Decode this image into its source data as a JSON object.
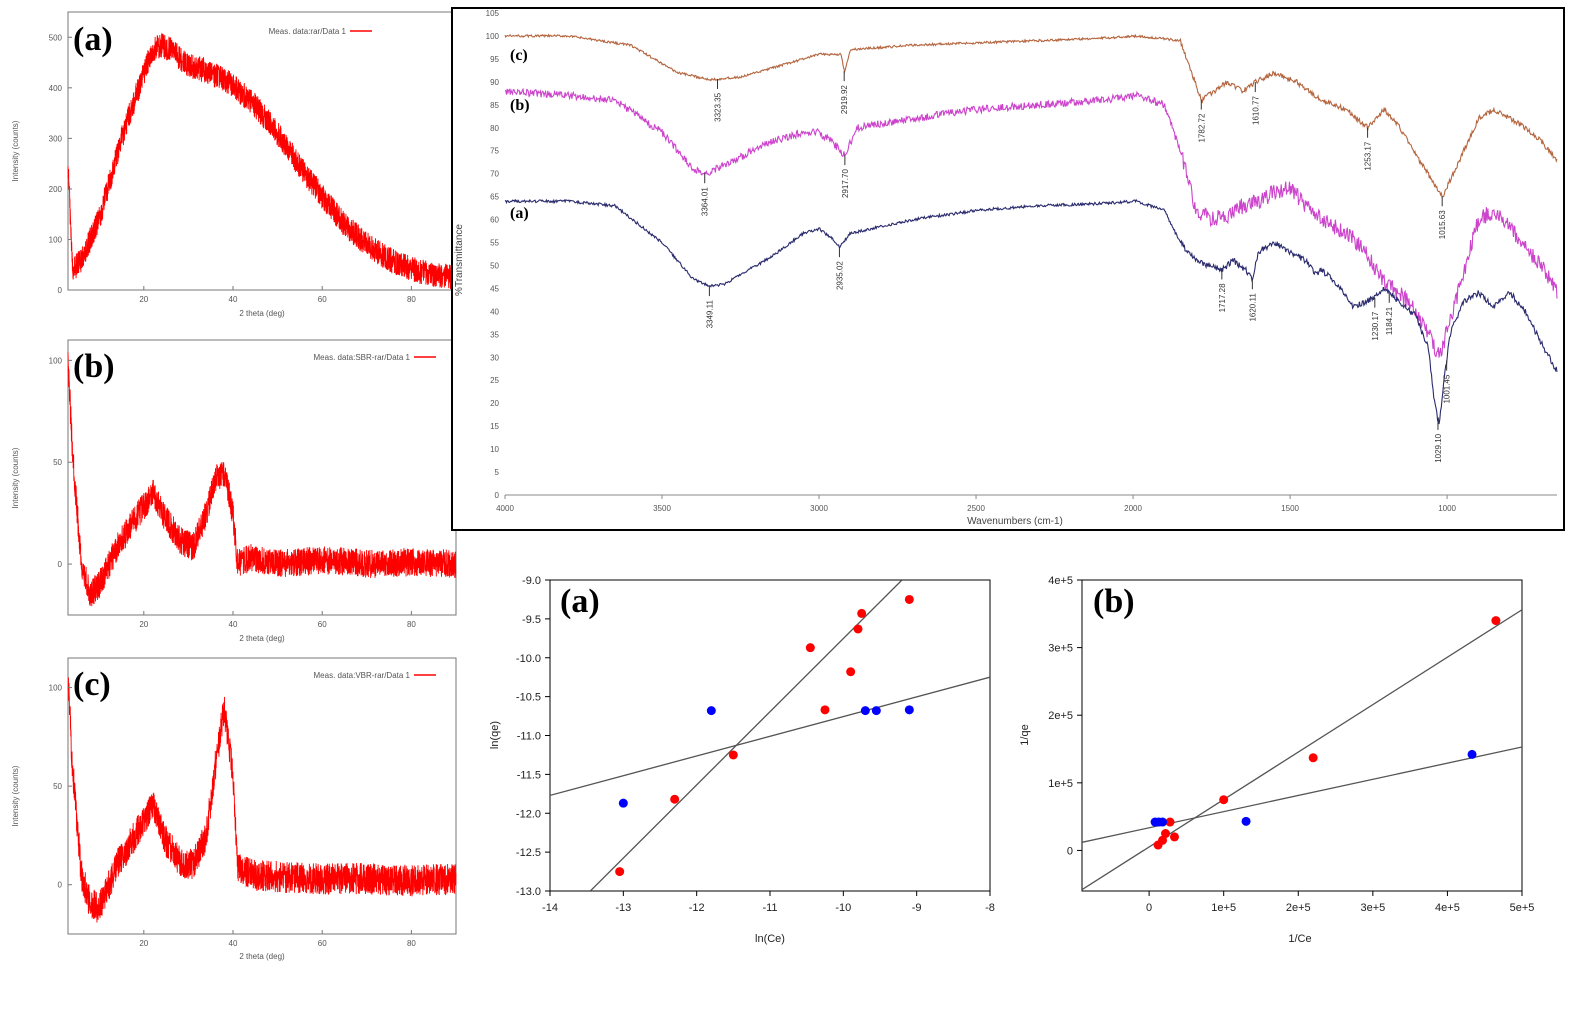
{
  "chart_data": [
    {
      "id": "xrd_a",
      "type": "line",
      "panel_label": "(a)",
      "legend": "Meas. data:rar/Data 1",
      "xlabel": "2 theta (deg)",
      "ylabel": "Intensity (counts)",
      "xlim": [
        3,
        90
      ],
      "ylim": [
        0,
        550
      ],
      "x_ticks": [
        20,
        40,
        60,
        80
      ],
      "y_ticks": [
        0,
        100,
        200,
        300,
        400,
        500
      ],
      "color": "#ff0000",
      "noise": 25,
      "x": [
        3,
        4,
        6,
        10,
        15,
        20,
        22,
        24,
        26,
        30,
        35,
        40,
        45,
        50,
        55,
        60,
        65,
        70,
        75,
        80,
        85,
        90
      ],
      "y": [
        250,
        40,
        60,
        140,
        300,
        430,
        475,
        485,
        475,
        445,
        430,
        405,
        365,
        310,
        245,
        185,
        130,
        90,
        60,
        42,
        30,
        25
      ]
    },
    {
      "id": "xrd_b",
      "type": "line",
      "panel_label": "(b)",
      "legend": "Meas. data:SBR-rar/Data 1",
      "xlabel": "2 theta (deg)",
      "ylabel": "Intensity (counts)",
      "xlim": [
        3,
        90
      ],
      "ylim": [
        -25,
        110
      ],
      "x_ticks": [
        20,
        40,
        60,
        80
      ],
      "y_ticks": [
        0,
        50,
        100
      ],
      "color": "#ff0000",
      "noise": 7,
      "x": [
        3,
        4,
        6,
        8,
        10,
        14,
        18,
        22,
        25,
        28,
        31,
        34,
        36,
        38,
        40,
        41,
        44,
        50,
        60,
        70,
        80,
        90
      ],
      "y": [
        100,
        55,
        0,
        -15,
        -10,
        8,
        22,
        35,
        22,
        12,
        8,
        25,
        42,
        45,
        25,
        0,
        3,
        0,
        2,
        0,
        1,
        0
      ]
    },
    {
      "id": "xrd_c",
      "type": "line",
      "panel_label": "(c)",
      "legend": "Meas. data:VBR-rar/Data 1",
      "xlabel": "2 theta (deg)",
      "ylabel": "Intensity (counts)",
      "xlim": [
        3,
        90
      ],
      "ylim": [
        -25,
        115
      ],
      "x_ticks": [
        20,
        40,
        60,
        80
      ],
      "y_ticks": [
        0,
        50,
        100
      ],
      "color": "#ff0000",
      "noise": 8,
      "x": [
        3,
        4,
        6,
        8,
        10,
        14,
        18,
        22,
        25,
        28,
        31,
        34,
        36,
        38,
        40,
        41,
        44,
        50,
        60,
        70,
        80,
        90
      ],
      "y": [
        105,
        60,
        5,
        -10,
        -12,
        10,
        25,
        40,
        22,
        12,
        10,
        25,
        60,
        90,
        55,
        10,
        5,
        4,
        3,
        3,
        2,
        3
      ]
    },
    {
      "id": "ftir",
      "type": "line",
      "xlabel": "Wavenumbers (cm-1)",
      "ylabel": "%Transmittance",
      "xlim": [
        4000,
        650
      ],
      "ylim": [
        0,
        105
      ],
      "x_ticks": [
        4000,
        3500,
        3000,
        2500,
        2000,
        1500,
        1000
      ],
      "x_tick_labels": [
        "4000",
        "3500",
        "3000",
        "2500",
        "2000",
        "1500",
        "1000"
      ],
      "y_ticks": [
        0,
        5,
        10,
        15,
        20,
        25,
        30,
        35,
        40,
        45,
        50,
        55,
        60,
        65,
        70,
        75,
        80,
        85,
        90,
        95,
        100,
        105
      ],
      "series": [
        {
          "label": "(c)",
          "color": "#b5653f",
          "noise": 0.25,
          "x": [
            4000,
            3800,
            3600,
            3450,
            3350,
            3250,
            3100,
            3000,
            2930,
            2919,
            2900,
            2700,
            2300,
            2100,
            1990,
            1850,
            1782,
            1700,
            1650,
            1610,
            1550,
            1480,
            1400,
            1320,
            1253,
            1200,
            1150,
            1080,
            1015,
            980,
            900,
            850,
            800,
            750,
            700,
            650
          ],
          "y": [
            100,
            100,
            98,
            92,
            90.5,
            91,
            94,
            96,
            96,
            92,
            97,
            98,
            99,
            99.5,
            100,
            99,
            86,
            90,
            88,
            90,
            92,
            90,
            86,
            84,
            80,
            84,
            80,
            72,
            65,
            70,
            82,
            84,
            82,
            80,
            77,
            73
          ]
        },
        {
          "label": "(b)",
          "color": "#cc44cc",
          "noise": 0.8,
          "x": [
            4000,
            3800,
            3650,
            3500,
            3400,
            3360,
            3300,
            3150,
            3050,
            3000,
            2960,
            2917,
            2880,
            2700,
            2500,
            2300,
            2100,
            1990,
            1900,
            1850,
            1800,
            1750,
            1700,
            1650,
            1600,
            1550,
            1500,
            1450,
            1400,
            1300,
            1250,
            1200,
            1150,
            1100,
            1050,
            1025,
            990,
            900,
            850,
            800,
            750,
            700,
            650
          ],
          "y": [
            88,
            87,
            86,
            79,
            71,
            70,
            72,
            77,
            79,
            79,
            77,
            74,
            80,
            82,
            84,
            85,
            86,
            87,
            85,
            75,
            62,
            60,
            61,
            63,
            64,
            66,
            67,
            63,
            60,
            56,
            52,
            46,
            44,
            40,
            34,
            30,
            38,
            60,
            62,
            58,
            54,
            50,
            44
          ]
        },
        {
          "label": "(a)",
          "color": "#2a2a6e",
          "noise": 0.3,
          "x": [
            4000,
            3800,
            3650,
            3500,
            3400,
            3350,
            3300,
            3150,
            3050,
            3000,
            2960,
            2935,
            2900,
            2700,
            2500,
            2300,
            2100,
            1990,
            1900,
            1850,
            1800,
            1720,
            1680,
            1640,
            1620,
            1600,
            1550,
            1500,
            1450,
            1420,
            1400,
            1350,
            1300,
            1260,
            1230,
            1200,
            1150,
            1100,
            1060,
            1040,
            1025,
            1010,
            990,
            950,
            900,
            850,
            800,
            750,
            700,
            650
          ],
          "y": [
            64,
            64,
            63,
            55,
            47,
            45.5,
            46,
            52,
            57,
            58,
            56,
            54,
            57,
            60,
            62,
            63,
            63.5,
            64,
            62,
            55,
            51,
            49,
            51,
            49,
            47,
            53,
            55,
            53,
            51,
            48,
            49,
            46,
            41,
            42,
            43,
            45,
            42,
            39,
            32,
            20,
            15,
            25,
            35,
            42,
            44,
            41,
            44,
            40,
            33,
            27
          ]
        }
      ],
      "annotations": [
        {
          "series": "(c)",
          "x": 3323.35,
          "text": "3323.35"
        },
        {
          "series": "(c)",
          "x": 2919.92,
          "text": "2919.92"
        },
        {
          "series": "(c)",
          "x": 1782.72,
          "text": "1782.72"
        },
        {
          "series": "(c)",
          "x": 1610.77,
          "text": "1610.77"
        },
        {
          "series": "(c)",
          "x": 1253.17,
          "text": "1253.17"
        },
        {
          "series": "(c)",
          "x": 1015.63,
          "text": "1015.63"
        },
        {
          "series": "(b)",
          "x": 3364.01,
          "text": "3364.01"
        },
        {
          "series": "(b)",
          "x": 2917.7,
          "text": "2917.70"
        },
        {
          "series": "(a)",
          "x": 3349.11,
          "text": "3349.11"
        },
        {
          "series": "(a)",
          "x": 2935.02,
          "text": "2935.02"
        },
        {
          "series": "(a)",
          "x": 1717.28,
          "text": "1717.28"
        },
        {
          "series": "(a)",
          "x": 1620.11,
          "text": "1620.11"
        },
        {
          "series": "(a)",
          "x": 1230.17,
          "text": "1230.17"
        },
        {
          "series": "(a)",
          "x": 1184.21,
          "text": "1184.21"
        },
        {
          "series": "(a)",
          "x": 1029.1,
          "text": "1029.10"
        },
        {
          "series": "(a)",
          "x": 1001.45,
          "text": "1001.45"
        }
      ]
    },
    {
      "id": "freundlich",
      "type": "scatter",
      "panel_label": "(a)",
      "xlabel": "ln(Ce)",
      "ylabel": "ln(qe)",
      "xlim": [
        -14,
        -8
      ],
      "ylim": [
        -13.0,
        -9.0
      ],
      "x_ticks": [
        -14,
        -13,
        -12,
        -11,
        -10,
        -9,
        -8
      ],
      "y_ticks": [
        -13.0,
        -12.5,
        -12.0,
        -11.5,
        -11.0,
        -10.5,
        -10.0,
        -9.5,
        -9.0
      ],
      "y_tick_labels": [
        "-13.0",
        "-12.5",
        "-12.0",
        "-11.5",
        "-11.0",
        "-10.5",
        "-10.0",
        "-9.5",
        "-9.0"
      ],
      "series": [
        {
          "color": "#ff0000",
          "x": [
            -13.05,
            -12.3,
            -11.5,
            -10.45,
            -10.25,
            -9.9,
            -9.8,
            -9.75,
            -9.1
          ],
          "y": [
            -12.75,
            -11.82,
            -11.25,
            -9.87,
            -10.67,
            -10.18,
            -9.63,
            -9.43,
            -9.25
          ]
        },
        {
          "color": "#0000ff",
          "x": [
            -13.0,
            -11.8,
            -9.7,
            -9.55,
            -9.1
          ],
          "y": [
            -11.87,
            -10.68,
            -10.68,
            -10.68,
            -10.67
          ]
        }
      ],
      "lines": [
        {
          "x": [
            -13.45,
            -9.2
          ],
          "y": [
            -13.0,
            -9.0
          ]
        },
        {
          "x": [
            -14.0,
            -8.0
          ],
          "y": [
            -11.77,
            -10.25
          ]
        }
      ]
    },
    {
      "id": "langmuir",
      "type": "scatter",
      "panel_label": "(b)",
      "xlabel": "1/Ce",
      "ylabel": "1/qe",
      "xlim": [
        -90000,
        500000
      ],
      "ylim": [
        -60000,
        400000
      ],
      "x_ticks": [
        0,
        100000,
        200000,
        300000,
        400000,
        500000
      ],
      "x_tick_labels": [
        "0",
        "1e+5",
        "2e+5",
        "3e+5",
        "4e+5",
        "5e+5"
      ],
      "y_ticks": [
        0,
        100000,
        200000,
        300000,
        400000
      ],
      "y_tick_labels": [
        "0",
        "1e+5",
        "2e+5",
        "3e+5",
        "4e+5"
      ],
      "series": [
        {
          "color": "#ff0000",
          "x": [
            12000,
            18000,
            22000,
            28000,
            34000,
            100000,
            220000,
            465000
          ],
          "y": [
            8000,
            15000,
            25000,
            42000,
            20000,
            75000,
            137000,
            340000
          ]
        },
        {
          "color": "#0000ff",
          "x": [
            8000,
            13000,
            18000,
            130000,
            433000
          ],
          "y": [
            42000,
            42000,
            42000,
            43000,
            142000
          ]
        }
      ],
      "lines": [
        {
          "x": [
            -90000,
            500000
          ],
          "y": [
            -58000,
            356000
          ]
        },
        {
          "x": [
            -90000,
            500000
          ],
          "y": [
            12000,
            153000
          ]
        }
      ]
    }
  ]
}
